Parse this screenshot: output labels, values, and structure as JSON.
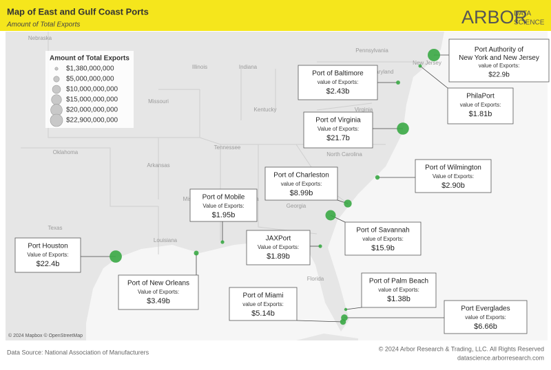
{
  "header": {
    "title": "Map of East and Gulf Coast Ports",
    "subtitle": "Amount of Total Exports",
    "logo_main": "ARBOR",
    "logo_top": "DATA",
    "logo_bottom": "SCIENCE"
  },
  "legend": {
    "title": "Amount of Total Exports",
    "items": [
      {
        "value": 1380000000,
        "label": "$1,380,000,000"
      },
      {
        "value": 5000000000,
        "label": "$5,000,000,000"
      },
      {
        "value": 10000000000,
        "label": "$10,000,000,000"
      },
      {
        "value": 15000000000,
        "label": "$15,000,000,000"
      },
      {
        "value": 20000000000,
        "label": "$20,000,000,000"
      },
      {
        "value": 22900000000,
        "label": "$22,900,000,000"
      }
    ]
  },
  "ports": [
    {
      "name": "Port Authority of New York and New Jersey",
      "caption": "value of Exports:",
      "export": {
        "value": 22900000000,
        "label": "$22.9b"
      }
    },
    {
      "name": "Port of Baltimore",
      "caption": "value of Exports:",
      "export": {
        "value": 2430000000,
        "label": "$2.43b"
      }
    },
    {
      "name": "PhilaPort",
      "caption": "value of Exports:",
      "export": {
        "value": 1810000000,
        "label": "$1.81b"
      }
    },
    {
      "name": "Port of Virginia",
      "caption": "Value of Exports:",
      "export": {
        "value": 21700000000,
        "label": "$21.7b"
      }
    },
    {
      "name": "Port of Wilmington",
      "caption": "Value of Exports:",
      "export": {
        "value": 2900000000,
        "label": "$2.90b"
      }
    },
    {
      "name": "Port of Charleston",
      "caption": "value of Exports:",
      "export": {
        "value": 8990000000,
        "label": "$8.99b"
      }
    },
    {
      "name": "Port of Mobile",
      "caption": "Value of Exports:",
      "export": {
        "value": 1950000000,
        "label": "$1.95b"
      }
    },
    {
      "name": "Port of Savannah",
      "caption": "value of Exports:",
      "export": {
        "value": 15900000000,
        "label": "$15.9b"
      }
    },
    {
      "name": "JAXPort",
      "caption": "Value of Exports:",
      "export": {
        "value": 1890000000,
        "label": "$1.89b"
      }
    },
    {
      "name": "Port Houston",
      "caption": "Value of Exports:",
      "export": {
        "value": 22400000000,
        "label": "$22.4b"
      }
    },
    {
      "name": "Port of New Orleans",
      "caption": "Value of Exports:",
      "export": {
        "value": 3490000000,
        "label": "$3.49b"
      }
    },
    {
      "name": "Port of Miami",
      "caption": "value of Exports:",
      "export": {
        "value": 5140000000,
        "label": "$5.14b"
      }
    },
    {
      "name": "Port of Palm Beach",
      "caption": "value of Exports:",
      "export": {
        "value": 1380000000,
        "label": "$1.38b"
      }
    },
    {
      "name": "Port Everglades",
      "caption": "value of Exports:",
      "export": {
        "value": 6660000000,
        "label": "$6.66b"
      }
    }
  ],
  "map_labels": [
    "Nebraska",
    "Illinois",
    "Indiana",
    "Missouri",
    "Kentucky",
    "Tennessee",
    "Oklahoma",
    "Arkansas",
    "Texas",
    "Louisiana",
    "Florida",
    "Georgia",
    "Virginia",
    "Maryland",
    "Pennsylvania",
    "New Jersey",
    "North Carolina",
    "Mississippi",
    "Alabama"
  ],
  "attribution": "© 2024 Mapbox © OpenStreetMap",
  "footer": {
    "source": "Data Source: National Association of Manufacturers",
    "copyright": "© 2024 Arbor Research & Trading, LLC. All Rights Reserved",
    "url": "datascience.arborresearch.com"
  }
}
